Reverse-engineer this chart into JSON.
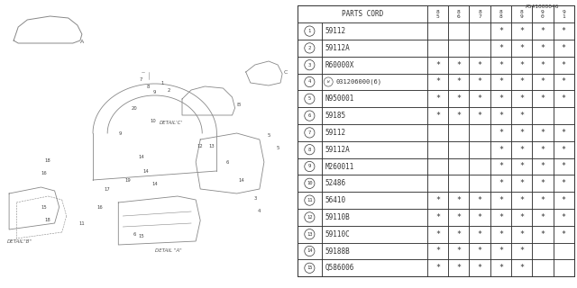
{
  "catalog_number": "A541000046",
  "table_header_col1": "PARTS CORD",
  "year_cols": [
    "85",
    "86",
    "87",
    "88",
    "89",
    "90",
    "91"
  ],
  "rows": [
    {
      "num": "1",
      "part": "59112",
      "years": [
        "",
        "",
        "",
        "*",
        "*",
        "*",
        "*"
      ]
    },
    {
      "num": "2",
      "part": "59112A",
      "years": [
        "",
        "",
        "",
        "*",
        "*",
        "*",
        "*"
      ]
    },
    {
      "num": "3",
      "part": "R60000X",
      "years": [
        "*",
        "*",
        "*",
        "*",
        "*",
        "*",
        "*"
      ]
    },
    {
      "num": "4",
      "part": "031206000(6)",
      "years": [
        "*",
        "*",
        "*",
        "*",
        "*",
        "*",
        "*"
      ],
      "w_circle": true
    },
    {
      "num": "5",
      "part": "N950001",
      "years": [
        "*",
        "*",
        "*",
        "*",
        "*",
        "*",
        "*"
      ]
    },
    {
      "num": "6",
      "part": "59185",
      "years": [
        "*",
        "*",
        "*",
        "*",
        "*",
        "",
        ""
      ]
    },
    {
      "num": "7",
      "part": "59112",
      "years": [
        "",
        "",
        "",
        "*",
        "*",
        "*",
        "*"
      ]
    },
    {
      "num": "8",
      "part": "59112A",
      "years": [
        "",
        "",
        "",
        "*",
        "*",
        "*",
        "*"
      ]
    },
    {
      "num": "9",
      "part": "M260011",
      "years": [
        "",
        "",
        "",
        "*",
        "*",
        "*",
        "*"
      ]
    },
    {
      "num": "10",
      "part": "52486",
      "years": [
        "",
        "",
        "",
        "*",
        "*",
        "*",
        "*"
      ]
    },
    {
      "num": "11",
      "part": "56410",
      "years": [
        "*",
        "*",
        "*",
        "*",
        "*",
        "*",
        "*"
      ]
    },
    {
      "num": "12",
      "part": "59110B",
      "years": [
        "*",
        "*",
        "*",
        "*",
        "*",
        "*",
        "*"
      ]
    },
    {
      "num": "13",
      "part": "59110C",
      "years": [
        "*",
        "*",
        "*",
        "*",
        "*",
        "*",
        "*"
      ]
    },
    {
      "num": "14",
      "part": "59188B",
      "years": [
        "*",
        "*",
        "*",
        "*",
        "*",
        "",
        ""
      ]
    },
    {
      "num": "15",
      "part": "Q586006",
      "years": [
        "*",
        "*",
        "*",
        "*",
        "*",
        "",
        ""
      ]
    }
  ],
  "bg_color": "#ffffff",
  "line_color": "#333333",
  "text_color": "#333333",
  "diagram_line_color": "#888888",
  "font_size": 5.5
}
